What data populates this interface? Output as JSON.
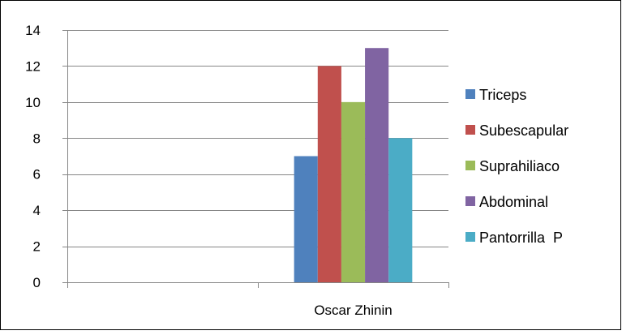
{
  "chart_data": {
    "type": "bar",
    "categories": [
      "",
      "Oscar Zhinin"
    ],
    "series": [
      {
        "name": "Triceps",
        "color": "#4f81bd",
        "values": [
          null,
          7
        ]
      },
      {
        "name": "Subescapular",
        "color": "#c0504d",
        "values": [
          null,
          12
        ]
      },
      {
        "name": "Suprahiliaco",
        "color": "#9bbb59",
        "values": [
          null,
          10
        ]
      },
      {
        "name": "Abdominal",
        "color": "#8064a2",
        "values": [
          null,
          13
        ]
      },
      {
        "name": "Pantorrilla  P",
        "color": "#4bacc6",
        "values": [
          null,
          8
        ]
      }
    ],
    "ylim": [
      0,
      14
    ],
    "yticks": [
      0,
      2,
      4,
      6,
      8,
      10,
      12,
      14
    ],
    "grid": true,
    "legend_position": "right",
    "title": "",
    "xlabel": "",
    "ylabel": ""
  }
}
